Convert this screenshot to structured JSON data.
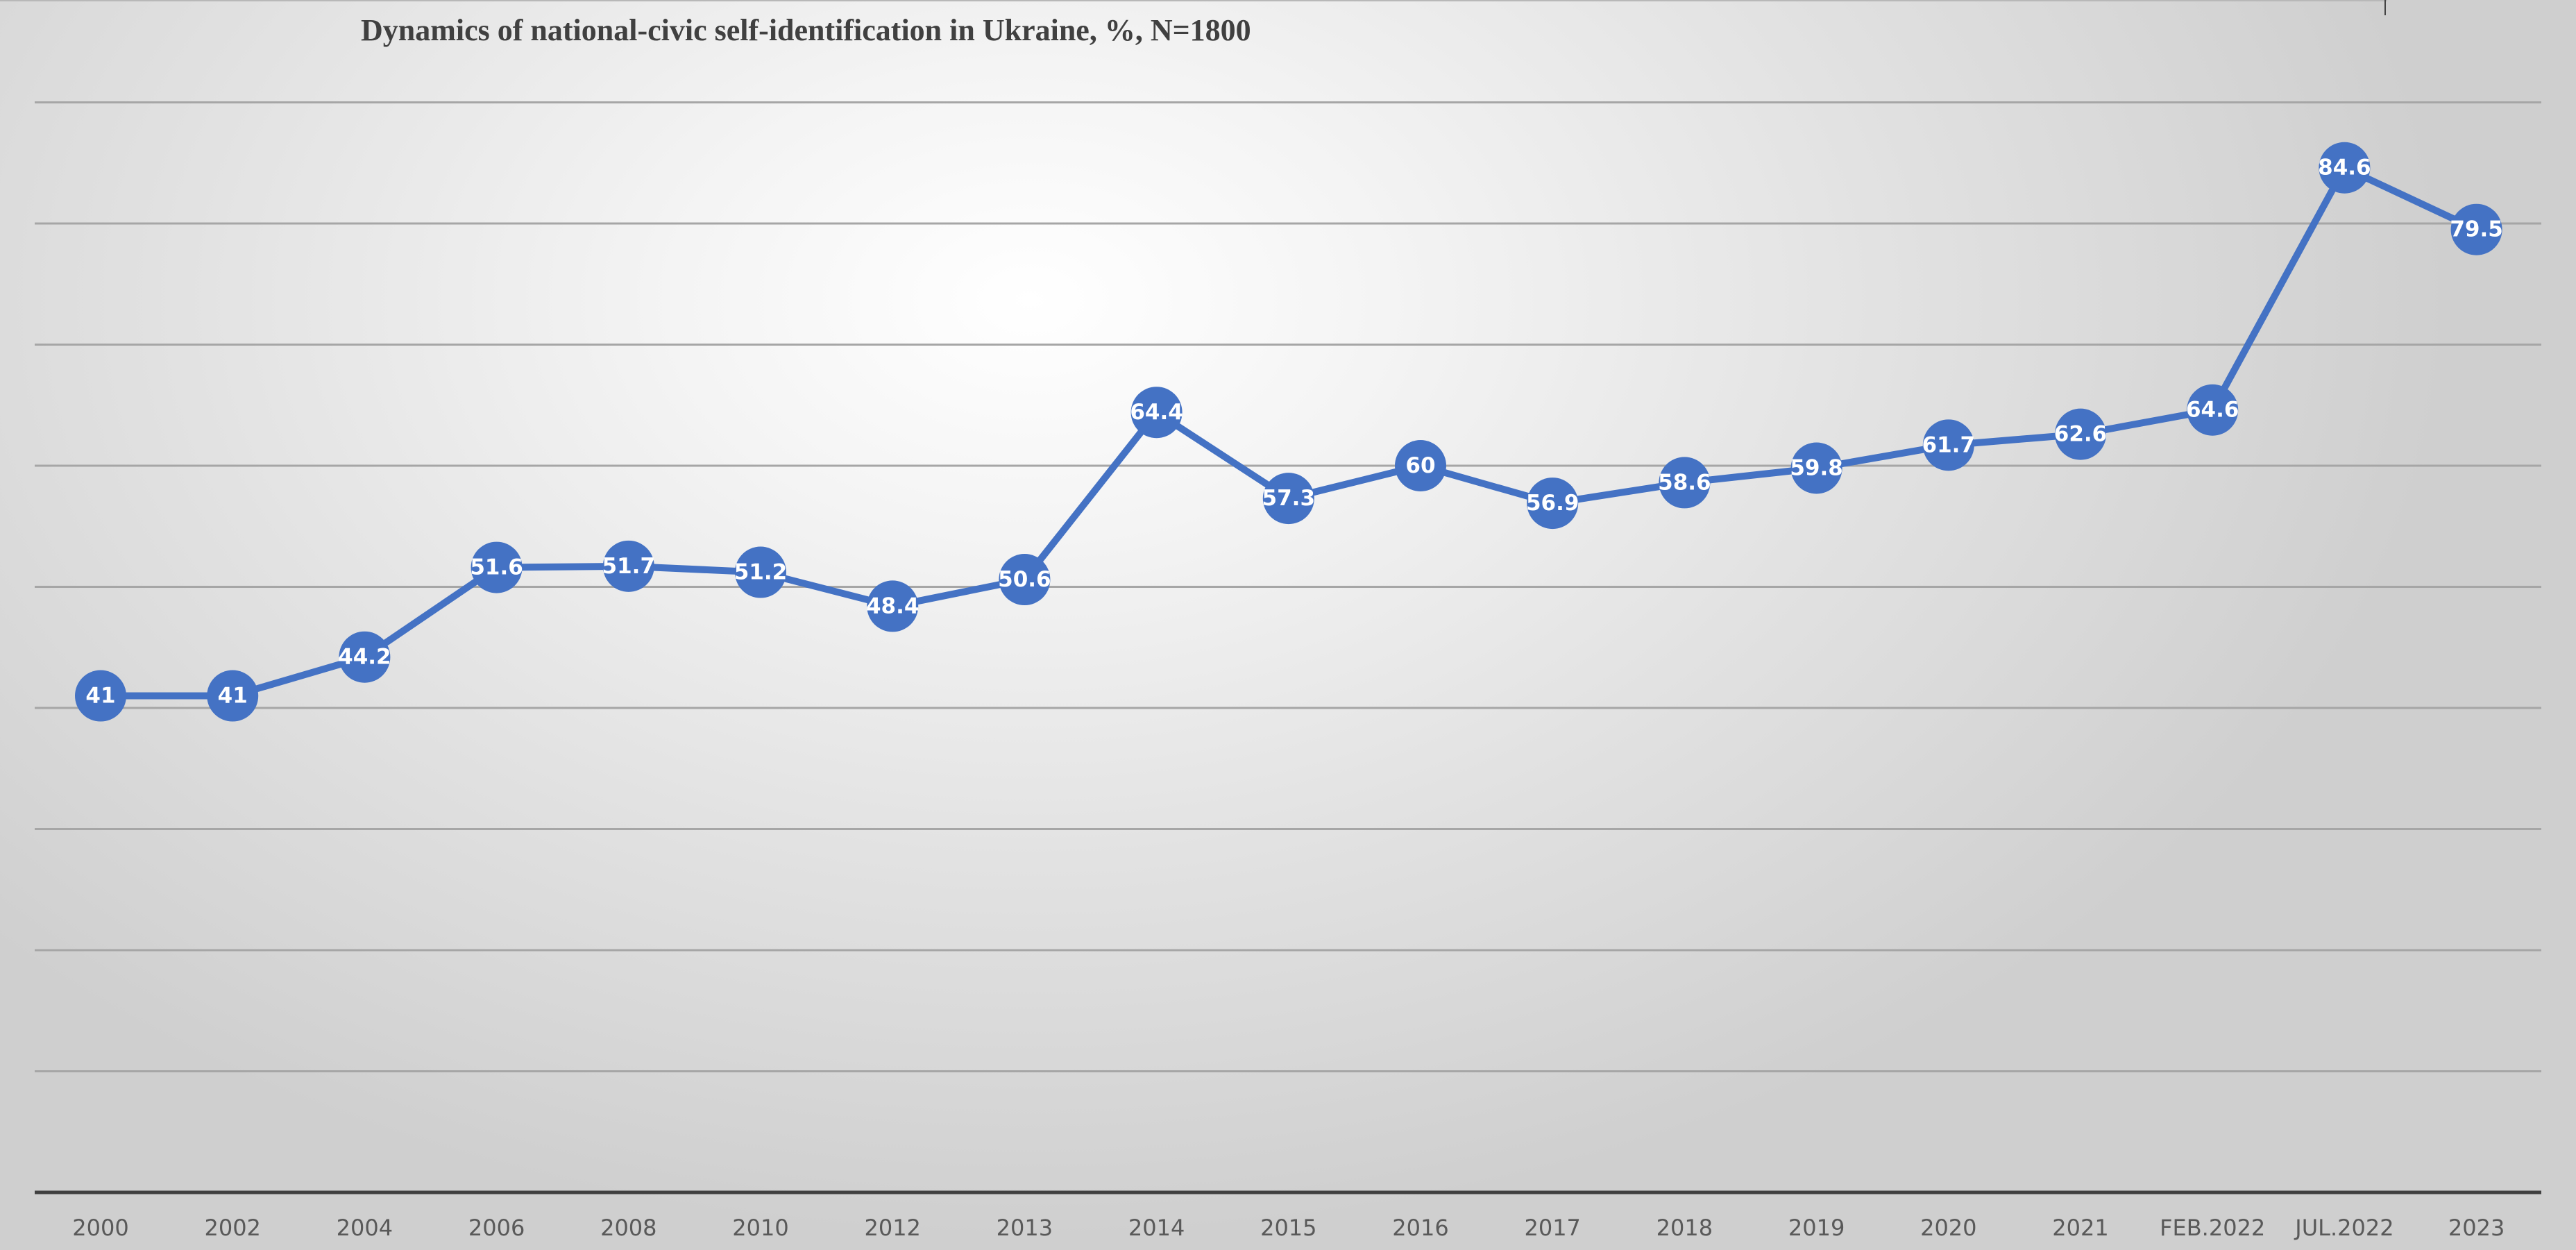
{
  "chart_data": {
    "type": "line",
    "title": "Dynamics of national-civic self-identification in Ukraine, %, N=1800",
    "xlabel": "",
    "ylabel": "",
    "categories": [
      "2000",
      "2002",
      "2004",
      "2006",
      "2008",
      "2010",
      "2012",
      "2013",
      "2014",
      "2015",
      "2016",
      "2017",
      "2018",
      "2019",
      "2020",
      "2021",
      "FEB.2022",
      "JUL.2022",
      "2023"
    ],
    "series": [
      {
        "values": [
          41,
          41,
          44.2,
          51.6,
          51.7,
          51.2,
          48.4,
          50.6,
          64.4,
          57.3,
          60,
          56.9,
          58.6,
          59.8,
          61.7,
          62.6,
          64.6,
          84.6,
          79.5
        ],
        "color": "#4472c4"
      }
    ],
    "ylim": [
      0,
      90
    ],
    "y_gridlines": [
      10,
      20,
      30,
      40,
      50,
      60,
      70,
      80,
      90
    ],
    "grid": true,
    "y_tick_labels": false,
    "data_labels": true,
    "legend": "none"
  }
}
